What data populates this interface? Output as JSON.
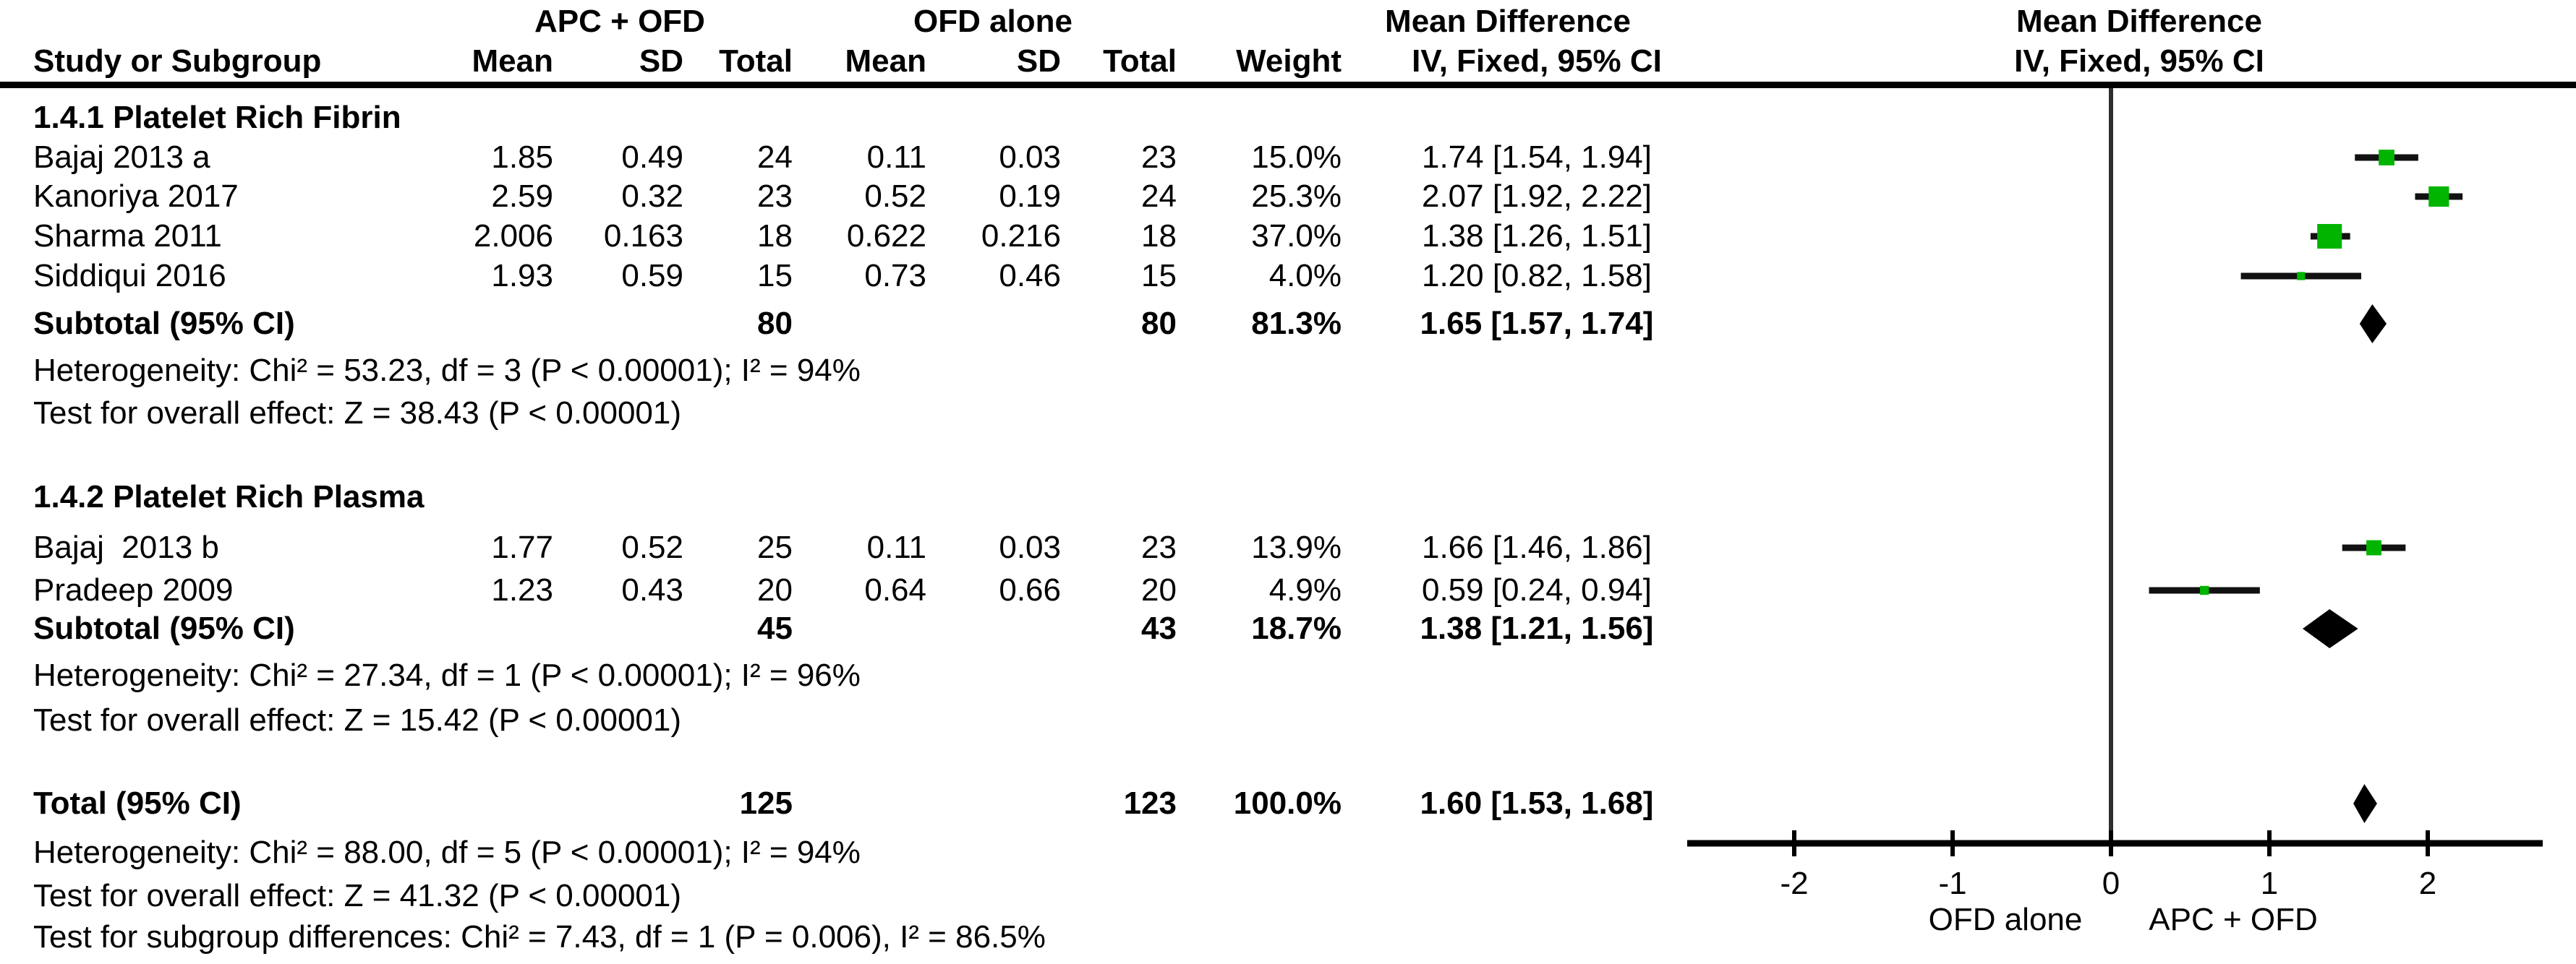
{
  "header": {
    "study_col": "Study or Subgroup",
    "group1": "APC + OFD",
    "group2": "OFD alone",
    "sub_cols": [
      "Mean",
      "SD",
      "Total",
      "Mean",
      "SD",
      "Total",
      "Weight"
    ],
    "effect_col": "IV, Fixed, 95% CI",
    "md_title": "Mean Difference",
    "md_sub": "IV, Fixed, 95% CI",
    "plot_title": "Mean Difference",
    "plot_sub": "IV, Fixed, 95% CI"
  },
  "chart_data": {
    "type": "forest",
    "effect_label": "Mean Difference",
    "model": "IV, Fixed, 95% CI",
    "axis": {
      "ticks": [
        -2,
        -1,
        0,
        1,
        2
      ],
      "min": -2.7,
      "max": 2.7,
      "left_label": "OFD alone",
      "right_label": "APC + OFD"
    },
    "groups": [
      {
        "title": "1.4.1 Platelet Rich Fibrin",
        "studies": [
          {
            "name": "Bajaj 2013 a",
            "mean1": "1.85",
            "sd1": "0.49",
            "n1": "24",
            "mean2": "0.11",
            "sd2": "0.03",
            "n2": "23",
            "weight": 15.0,
            "md": 1.74,
            "lo": 1.54,
            "hi": 1.94
          },
          {
            "name": "Kanoriya 2017",
            "mean1": "2.59",
            "sd1": "0.32",
            "n1": "23",
            "mean2": "0.52",
            "sd2": "0.19",
            "n2": "24",
            "weight": 25.3,
            "md": 2.07,
            "lo": 1.92,
            "hi": 2.22
          },
          {
            "name": "Sharma 2011",
            "mean1": "2.006",
            "sd1": "0.163",
            "n1": "18",
            "mean2": "0.622",
            "sd2": "0.216",
            "n2": "18",
            "weight": 37.0,
            "md": 1.38,
            "lo": 1.26,
            "hi": 1.51
          },
          {
            "name": "Siddiqui 2016",
            "mean1": "1.93",
            "sd1": "0.59",
            "n1": "15",
            "mean2": "0.73",
            "sd2": "0.46",
            "n2": "15",
            "weight": 4.0,
            "md": 1.2,
            "lo": 0.82,
            "hi": 1.58
          }
        ],
        "subtotal": {
          "label": "Subtotal (95% CI)",
          "n1": "80",
          "n2": "80",
          "weight": 81.3,
          "md": 1.65,
          "lo": 1.57,
          "hi": 1.74
        },
        "heterogeneity": "Heterogeneity: Chi² = 53.23, df = 3 (P < 0.00001); I² = 94%",
        "overall_effect": "Test for overall effect: Z = 38.43 (P < 0.00001)"
      },
      {
        "title": "1.4.2 Platelet Rich Plasma",
        "studies": [
          {
            "name": "Bajaj  2013 b",
            "mean1": "1.77",
            "sd1": "0.52",
            "n1": "25",
            "mean2": "0.11",
            "sd2": "0.03",
            "n2": "23",
            "weight": 13.9,
            "md": 1.66,
            "lo": 1.46,
            "hi": 1.86
          },
          {
            "name": "Pradeep 2009",
            "mean1": "1.23",
            "sd1": "0.43",
            "n1": "20",
            "mean2": "0.64",
            "sd2": "0.66",
            "n2": "20",
            "weight": 4.9,
            "md": 0.59,
            "lo": 0.24,
            "hi": 0.94
          }
        ],
        "subtotal": {
          "label": "Subtotal (95% CI)",
          "n1": "45",
          "n2": "43",
          "weight": 18.7,
          "md": 1.38,
          "lo": 1.21,
          "hi": 1.56
        },
        "heterogeneity": "Heterogeneity: Chi² = 27.34, df = 1 (P < 0.00001); I² = 96%",
        "overall_effect": "Test for overall effect: Z = 15.42 (P < 0.00001)"
      }
    ],
    "total": {
      "label": "Total (95% CI)",
      "n1": "125",
      "n2": "123",
      "weight": 100.0,
      "md": 1.6,
      "lo": 1.53,
      "hi": 1.68
    },
    "total_heterogeneity": "Heterogeneity: Chi² = 88.00, df = 5 (P < 0.00001); I² = 94%",
    "total_overall_effect": "Test for overall effect: Z = 41.32 (P < 0.00001)",
    "subgroup_differences": "Test for subgroup differences: Chi² = 7.43, df = 1 (P = 0.006), I² = 86.5%"
  },
  "colors": {
    "square": "#00b400",
    "diamond": "#000000",
    "ci_line": "#111111",
    "axis": "#000000",
    "zero_line": "#2f2f2f",
    "text": "#000000"
  }
}
